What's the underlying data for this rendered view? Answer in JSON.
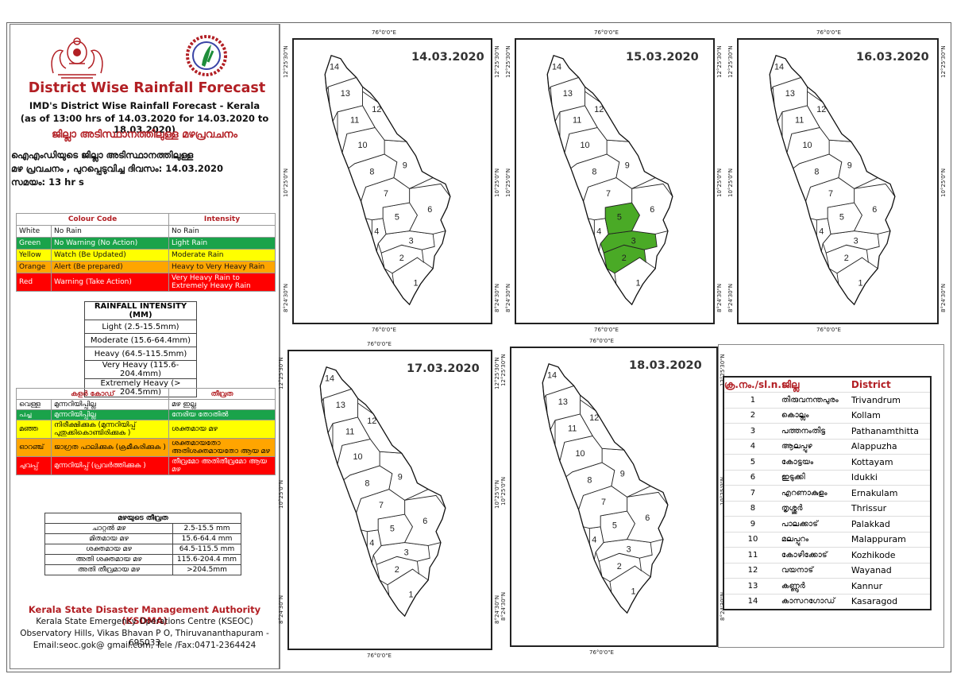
{
  "header": {
    "title": "District Wise Rainfall Forecast",
    "line1": "IMD's District Wise Rainfall Forecast - Kerala",
    "line2": "(as of 13:00 hrs of 14.03.2020  for 14.03.2020  to 18.03.2020)",
    "ml_title": "ജില്ലാ അടിസ്ഥാനത്തിലുള്ള മഴപ്രവചനം",
    "ml_para1": "ഐഎംഡിയുടെ ജില്ലാ      അടിസ്ഥാനത്തിലുള്ള",
    "ml_para2": "മഴ പ്രവചനം , പുറപ്പെടുവിച്ച       ദിവസം: 14.03.2020",
    "ml_para3": "സമയം:  13  hr s"
  },
  "colour_code_table": {
    "col1": "Colour Code",
    "col2": "Intensity",
    "rows": [
      {
        "colour": "White",
        "meaning": "No Rain",
        "intensity": "No Rain",
        "bg": "#ffffff"
      },
      {
        "colour": "Green",
        "meaning": "No Warning (No Action)",
        "intensity": "Light Rain",
        "bg": "#1aa34a"
      },
      {
        "colour": "Yellow",
        "meaning": "Watch (Be Updated)",
        "intensity": "Moderate Rain",
        "bg": "#ffff00"
      },
      {
        "colour": "Orange",
        "meaning": "Alert (Be prepared)",
        "intensity": "Heavy to Very Heavy Rain",
        "bg": "#ffa500"
      },
      {
        "colour": "Red",
        "meaning": "Warning (Take Action)",
        "intensity": "Very Heavy Rain to Extremely Heavy Rain",
        "bg": "#ff0000"
      }
    ]
  },
  "rainfall_intensity": {
    "title": "RAINFALL INTENSITY (MM)",
    "rows": [
      "Light (2.5-15.5mm)",
      "Moderate (15.6-64.4mm)",
      "Heavy (64.5-115.5mm)",
      "Very Heavy (115.6-204.4mm)",
      "Extremely Heavy (> 204.5mm)"
    ]
  },
  "ml_colour_table": {
    "col1": "കളർ കോഡ്",
    "col2": "തീവ്രത",
    "rows": [
      {
        "colour": "വെള്ള",
        "meaning": "മുന്നറിയിപ്പില്ല",
        "intensity": "മഴ ഇല്ല",
        "bg": "#ffffff"
      },
      {
        "colour": "പച്ച",
        "meaning": "മുന്നറിയിപ്പില്ല",
        "intensity": "നേരിയ തോതിൽ",
        "bg": "#1aa34a"
      },
      {
        "colour": "മഞ്ഞ",
        "meaning": "നിരീക്ഷിക്കുക (മുന്നറിയിപ്പ് പുതുക്കികൊണ്ടിരിക്കുക  )",
        "intensity": "ശക്തമായ മഴ",
        "bg": "#ffff00"
      },
      {
        "colour": "ഓറഞ്ച്",
        "meaning": "ജാഗ്രത പാലിക്കുക (ക്രമീകരിക്കുക  )",
        "intensity": "ശക്തമായതോ അതിശക്തമായതോ ആയ മഴ",
        "bg": "#ffa500"
      },
      {
        "colour": "ചുവപ്പ്",
        "meaning": "മുന്നറിയിപ്പ് (പ്രവർത്തിക്കുക )",
        "intensity": "തീവ്രമോ അതിതീവ്രമോ ആയ മഴ",
        "bg": "#ff0000"
      }
    ]
  },
  "ml_intensity_table": {
    "title": "മഴയുടെ തീവ്രത",
    "rows": [
      {
        "label": "ചാറ്റൽ മഴ",
        "range": "2.5-15.5 mm"
      },
      {
        "label": "മിതമായ മഴ",
        "range": "15.6-64.4 mm"
      },
      {
        "label": "ശക്തമായ മഴ",
        "range": "64.5-115.5 mm"
      },
      {
        "label": "അതി ശക്തമായ മഴ",
        "range": "115.6-204.4 mm"
      },
      {
        "label": "അതി തീവ്രമായ മഴ",
        "range": ">204.5mm"
      }
    ]
  },
  "footer": {
    "org": "Kerala State Disaster Management Authority (KSDMA)",
    "centre": "Kerala State Emergency Operations Centre (KSEOC)",
    "address": "Observatory Hills, Vikas Bhavan P O, Thiruvananthapuram - 695033",
    "contact": "Email:seoc.gok@ gmail.com, Tele /Fax:0471-2364424"
  },
  "map_labels": {
    "lon": "76°0'0\"E",
    "lat_top": "12°25'30\"N",
    "lat_mid": "10°25'0\"N",
    "lat_bot": "8°24'30\"N"
  },
  "maps": [
    {
      "date": "14.03.2020",
      "green": []
    },
    {
      "date": "15.03.2020",
      "green": [
        2,
        3,
        5
      ]
    },
    {
      "date": "16.03.2020",
      "green": []
    },
    {
      "date": "17.03.2020",
      "green": []
    },
    {
      "date": "18.03.2020",
      "green": []
    }
  ],
  "district_table": {
    "h_sl": "ക്ര.നം./sl.n.",
    "h_ml": "ജില്ല",
    "h_en": "District",
    "rows": [
      {
        "sl": "1",
        "ml": "തിരുവനന്തപുരം",
        "en": "Trivandrum"
      },
      {
        "sl": "2",
        "ml": "കൊല്ലം",
        "en": "Kollam"
      },
      {
        "sl": "3",
        "ml": "പത്തനംതിട്ട",
        "en": "Pathanamthitta"
      },
      {
        "sl": "4",
        "ml": "ആലപ്പുഴ",
        "en": "Alappuzha"
      },
      {
        "sl": "5",
        "ml": "കോട്ടയം",
        "en": "Kottayam"
      },
      {
        "sl": "6",
        "ml": "ഇടുക്കി",
        "en": "Idukki"
      },
      {
        "sl": "7",
        "ml": "എറണാകുളം",
        "en": "Ernakulam"
      },
      {
        "sl": "8",
        "ml": "തൃശ്ശൂർ",
        "en": "Thrissur"
      },
      {
        "sl": "9",
        "ml": "പാലക്കാട്",
        "en": "Palakkad"
      },
      {
        "sl": "10",
        "ml": "മലപ്പുറം",
        "en": "Malappuram"
      },
      {
        "sl": "11",
        "ml": "കോഴിക്കോട്",
        "en": "Kozhikode"
      },
      {
        "sl": "12",
        "ml": "വയനാട്",
        "en": "Wayanad"
      },
      {
        "sl": "13",
        "ml": "കണ്ണൂർ",
        "en": "Kannur"
      },
      {
        "sl": "14",
        "ml": "കാസറഗോഡ്",
        "en": "Kasaragod"
      }
    ]
  },
  "colors": {
    "accent": "#b21f24",
    "green": "#4aaa26"
  }
}
